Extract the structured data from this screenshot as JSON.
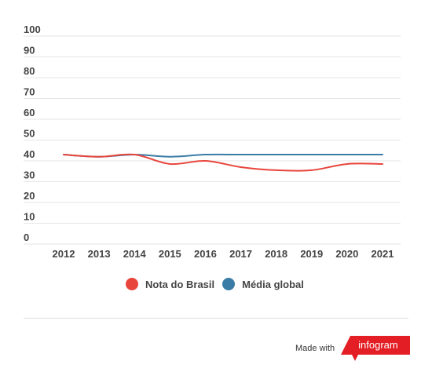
{
  "chart_data": {
    "type": "line",
    "x": [
      "2012",
      "2013",
      "2014",
      "2015",
      "2016",
      "2017",
      "2018",
      "2019",
      "2020",
      "2021"
    ],
    "y_ticks": [
      "100",
      "90",
      "80",
      "70",
      "60",
      "50",
      "40",
      "30",
      "20",
      "10",
      "0"
    ],
    "ylim": [
      0,
      100
    ],
    "grid": true,
    "legend_position": "bottom",
    "series": [
      {
        "name": "Nota do Brasil",
        "color": "#e8453c",
        "values": [
          43,
          42,
          43,
          38.5,
          40,
          37,
          35.5,
          35.5,
          38.5,
          38.5
        ]
      },
      {
        "name": "Média global",
        "color": "#3a7ca5",
        "values": [
          43,
          42,
          43,
          42,
          43,
          43,
          43,
          43,
          43,
          43
        ]
      }
    ]
  },
  "footer": {
    "made_with": "Made with",
    "brand": "infogram",
    "brand_color": "#e31e24"
  }
}
